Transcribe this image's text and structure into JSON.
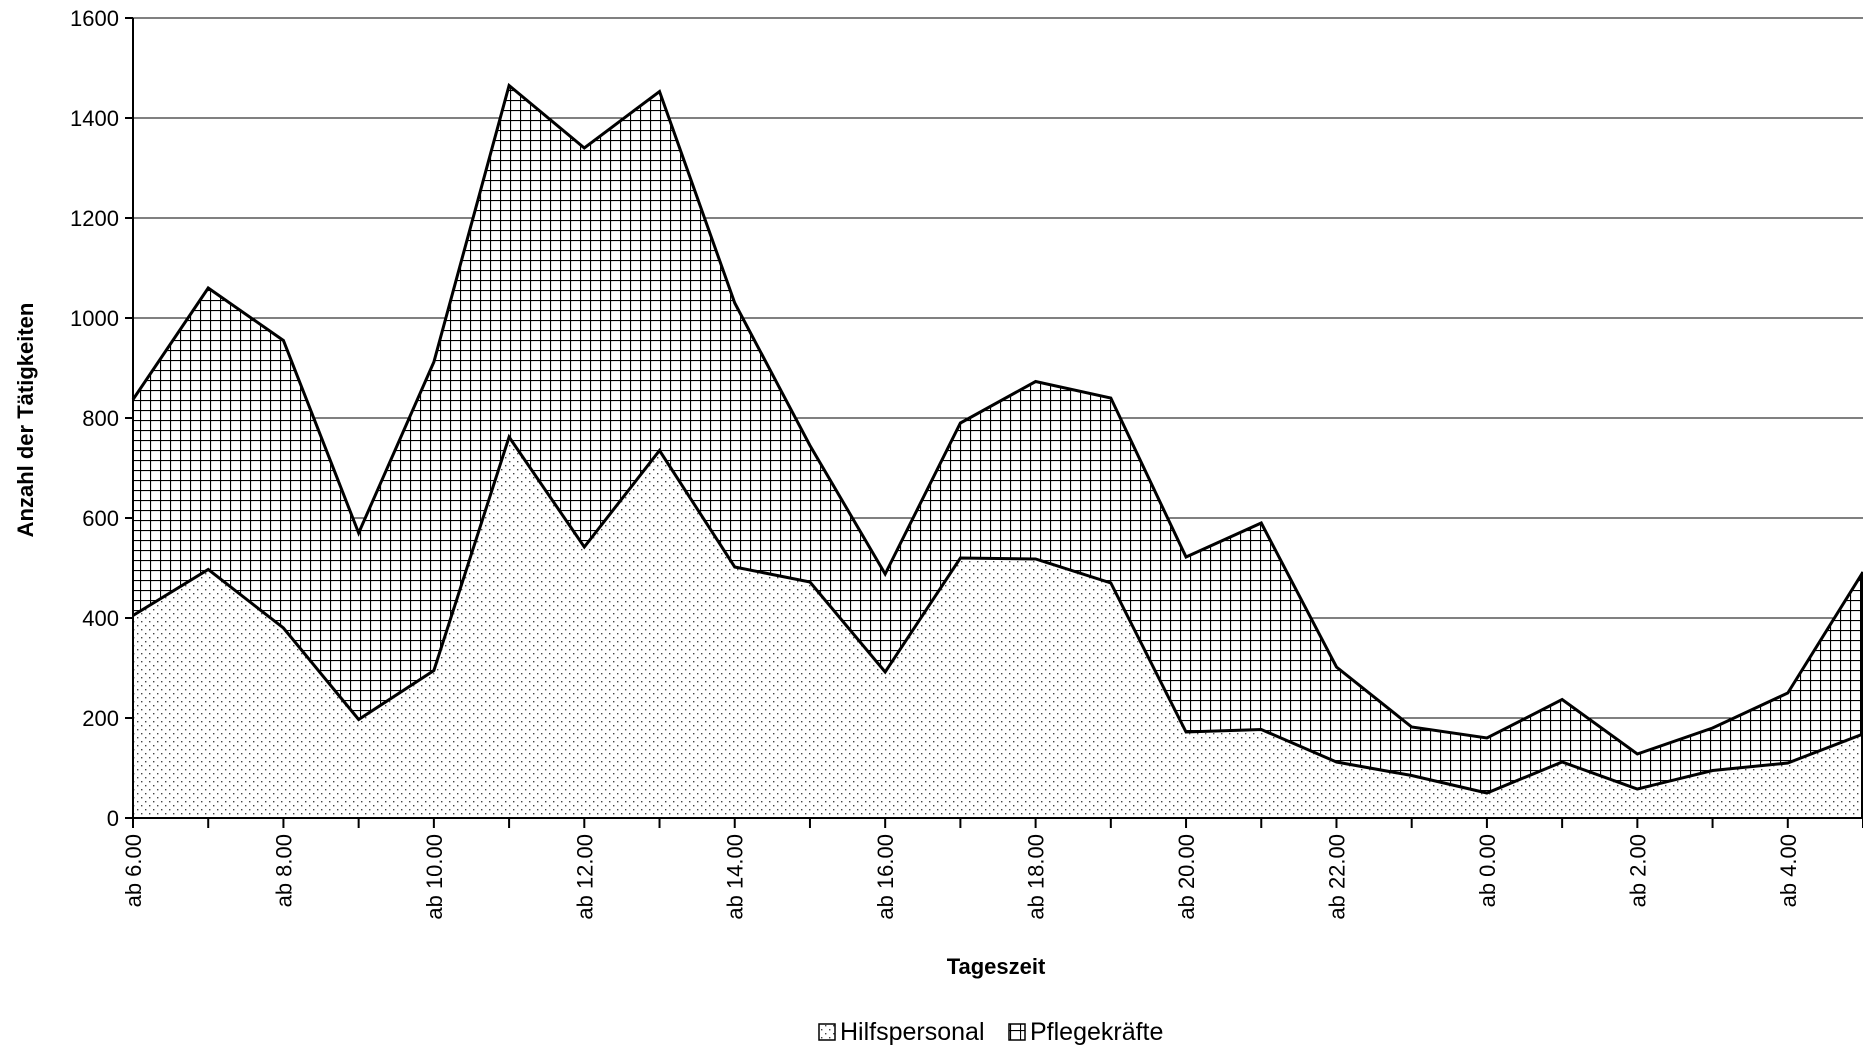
{
  "chart_data": {
    "type": "area",
    "stacked": true,
    "categories": [
      "ab 6.00",
      "ab 7.00",
      "ab 8.00",
      "ab 9.00",
      "ab 10.00",
      "ab 11.00",
      "ab 12.00",
      "ab 13.00",
      "ab 14.00",
      "ab 15.00",
      "ab 16.00",
      "ab 17.00",
      "ab 18.00",
      "ab 19.00",
      "ab 20.00",
      "ab 21.00",
      "ab 22.00",
      "ab 23.00",
      "ab 0.00",
      "ab 1.00",
      "ab 2.00",
      "ab 3.00",
      "ab 4.00",
      "ab 5.00"
    ],
    "tick_labels": [
      "ab 6.00",
      "ab 8.00",
      "ab 10.00",
      "ab 12.00",
      "ab 14.00",
      "ab 16.00",
      "ab 18.00",
      "ab 20.00",
      "ab 22.00",
      "ab 0.00",
      "ab 2.00",
      "ab 4.00"
    ],
    "series": [
      {
        "name": "Hilfspersonal",
        "values": [
          405,
          497,
          380,
          197,
          295,
          762,
          542,
          735,
          502,
          472,
          292,
          520,
          518,
          470,
          172,
          177,
          112,
          85,
          50,
          112,
          58,
          95,
          110,
          168
        ]
      },
      {
        "name": "Pflegekräfte",
        "values": [
          432,
          563,
          575,
          373,
          617,
          703,
          798,
          718,
          528,
          273,
          196,
          270,
          355,
          370,
          350,
          413,
          190,
          97,
          110,
          125,
          70,
          85,
          140,
          324
        ]
      }
    ],
    "xlabel": "Tageszeit",
    "ylabel": "Anzahl der Tätigkeiten",
    "ylim": [
      0,
      1600
    ],
    "yticks": [
      "0",
      "200",
      "400",
      "600",
      "800",
      "1000",
      "1200",
      "1400",
      "1600"
    ],
    "grid": true,
    "legend_position": "bottom"
  }
}
